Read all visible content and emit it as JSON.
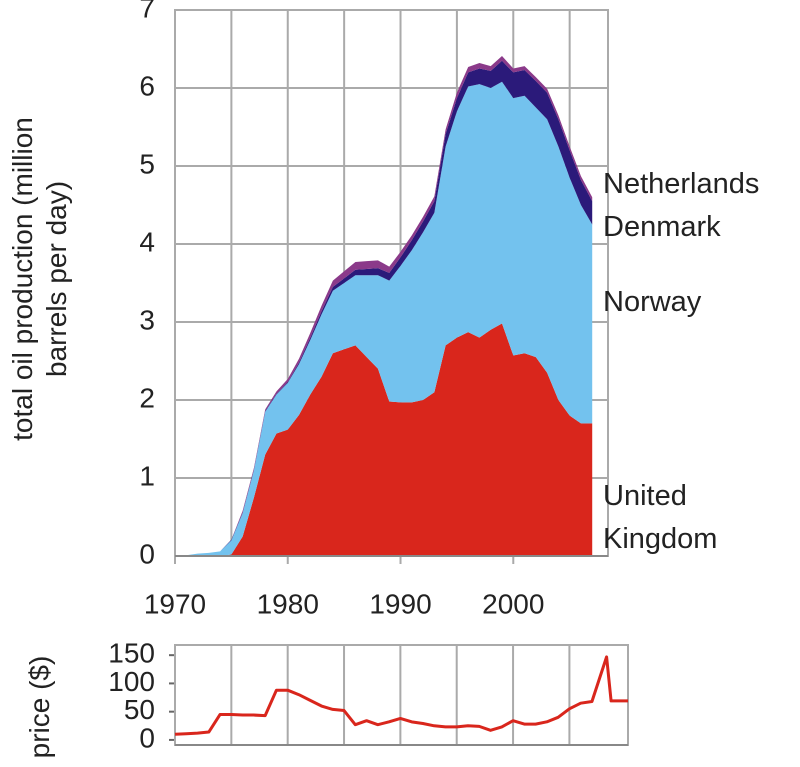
{
  "chart_data": [
    {
      "type": "stacked_area",
      "ylabel": "total oil production (million barrels per day)",
      "x": [
        1970,
        1971,
        1972,
        1973,
        1974,
        1975,
        1976,
        1977,
        1978,
        1979,
        1980,
        1981,
        1982,
        1983,
        1984,
        1985,
        1986,
        1987,
        1988,
        1989,
        1990,
        1991,
        1992,
        1993,
        1994,
        1995,
        1996,
        1997,
        1998,
        1999,
        2000,
        2001,
        2002,
        2003,
        2004,
        2005,
        2006,
        2007
      ],
      "series": [
        {
          "name": "United Kingdom",
          "color": "#d9261c",
          "values": [
            0,
            0,
            0,
            0,
            0,
            0.02,
            0.25,
            0.75,
            1.3,
            1.57,
            1.62,
            1.81,
            2.07,
            2.3,
            2.6,
            2.65,
            2.7,
            2.55,
            2.4,
            1.98,
            1.97,
            1.97,
            2.0,
            2.1,
            2.7,
            2.8,
            2.87,
            2.8,
            2.9,
            2.98,
            2.57,
            2.6,
            2.55,
            2.35,
            2.0,
            1.8,
            1.7,
            1.7
          ]
        },
        {
          "name": "Norway",
          "color": "#73c2ee",
          "values": [
            0,
            0.01,
            0.03,
            0.04,
            0.06,
            0.18,
            0.3,
            0.35,
            0.55,
            0.5,
            0.6,
            0.65,
            0.7,
            0.8,
            0.8,
            0.85,
            0.9,
            1.05,
            1.2,
            1.55,
            1.75,
            1.95,
            2.15,
            2.3,
            2.55,
            2.9,
            3.15,
            3.25,
            3.1,
            3.1,
            3.3,
            3.3,
            3.2,
            3.25,
            3.25,
            3.05,
            2.8,
            2.55
          ]
        },
        {
          "name": "Denmark",
          "color": "#2b1a7a",
          "values": [
            0,
            0,
            0,
            0,
            0,
            0.01,
            0.01,
            0.01,
            0.01,
            0.01,
            0.01,
            0.02,
            0.03,
            0.04,
            0.05,
            0.06,
            0.07,
            0.08,
            0.09,
            0.1,
            0.11,
            0.13,
            0.14,
            0.15,
            0.16,
            0.17,
            0.18,
            0.2,
            0.22,
            0.27,
            0.33,
            0.33,
            0.34,
            0.34,
            0.35,
            0.35,
            0.32,
            0.3
          ]
        },
        {
          "name": "Netherlands",
          "color": "#8b3a8a",
          "values": [
            0,
            0,
            0,
            0,
            0,
            0,
            0.02,
            0.02,
            0.02,
            0.03,
            0.04,
            0.05,
            0.06,
            0.07,
            0.08,
            0.09,
            0.1,
            0.1,
            0.1,
            0.08,
            0.07,
            0.06,
            0.06,
            0.06,
            0.06,
            0.07,
            0.07,
            0.07,
            0.06,
            0.06,
            0.05,
            0.05,
            0.05,
            0.05,
            0.05,
            0.05,
            0.05,
            0.05
          ]
        }
      ],
      "xlim": [
        1970,
        2008.4
      ],
      "xticks": [
        1970,
        1980,
        1990,
        2000
      ],
      "x_minor_grid": [
        1975,
        1985,
        1995,
        2005
      ],
      "ylim": [
        0,
        7
      ],
      "yticks": [
        0,
        1,
        2,
        3,
        4,
        5,
        6,
        7
      ],
      "grid": true
    },
    {
      "type": "line",
      "ylabel": "price ($)",
      "x": [
        1970,
        1971,
        1972,
        1973,
        1974,
        1975,
        1976,
        1977,
        1978,
        1979,
        1980,
        1981,
        1982,
        1983,
        1984,
        1985,
        1986,
        1987,
        1988,
        1989,
        1990,
        1991,
        1992,
        1993,
        1994,
        1995,
        1996,
        1997,
        1998,
        1999,
        2000,
        2001,
        2002,
        2003,
        2004,
        2005,
        2006,
        2007,
        2008.3,
        2008.7,
        2010.2
      ],
      "series": [
        {
          "name": "price",
          "color": "#d9261c",
          "values": [
            10,
            11,
            12,
            14,
            45,
            45,
            44,
            44,
            43,
            88,
            88,
            80,
            70,
            60,
            54,
            52,
            27,
            34,
            27,
            32,
            38,
            32,
            29,
            25,
            23,
            23,
            25,
            24,
            17,
            23,
            34,
            28,
            28,
            32,
            40,
            55,
            65,
            68,
            147,
            69,
            69
          ]
        }
      ],
      "xlim": [
        1970,
        2010.2
      ],
      "x_minor_grid": [
        1975,
        1980,
        1985,
        1990,
        1995,
        2000,
        2005
      ],
      "ylim": [
        -9,
        168
      ],
      "yticks": [
        0,
        50,
        100,
        150
      ],
      "grid": false
    }
  ]
}
